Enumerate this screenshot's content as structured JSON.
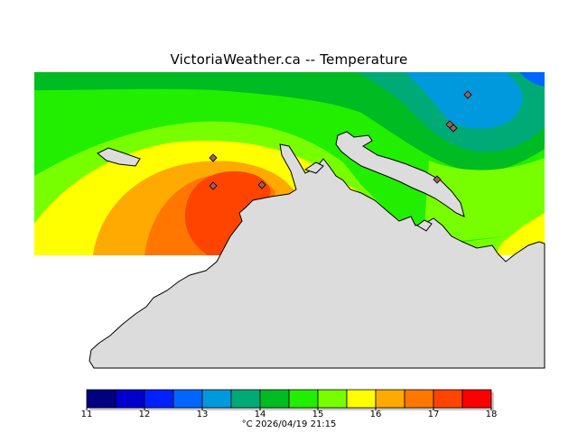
{
  "title": "VictoriaWeather.ca  --  Temperature",
  "colors": {
    "land": "#dcdcdc",
    "coast": "#000000",
    "station": "#9a6060"
  },
  "legend": {
    "ticks": [
      "11",
      "12",
      "13",
      "14",
      "15",
      "16",
      "17",
      "18"
    ],
    "unit": "°C",
    "timestamp": "2026/04/19 21:15",
    "bins": [
      {
        "color": "#000080"
      },
      {
        "color": "#0000cd"
      },
      {
        "color": "#0022ff"
      },
      {
        "color": "#0066ff"
      },
      {
        "color": "#0099dd"
      },
      {
        "color": "#00aa77"
      },
      {
        "color": "#00bb22"
      },
      {
        "color": "#22ee00"
      },
      {
        "color": "#77ff00"
      },
      {
        "color": "#ffff00"
      },
      {
        "color": "#ffaa00"
      },
      {
        "color": "#ff7700"
      },
      {
        "color": "#ff4400"
      },
      {
        "color": "#ff0000"
      }
    ]
  }
}
